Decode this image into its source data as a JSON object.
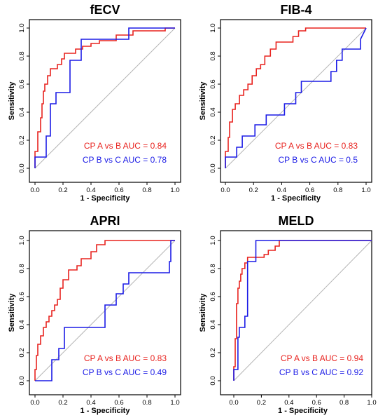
{
  "chart_data": [
    {
      "type": "line",
      "title": "fECV",
      "xlabel": "1 - Specificity",
      "ylabel": "Sensitivity",
      "xlim": [
        0,
        1
      ],
      "ylim": [
        0,
        1
      ],
      "ticks": [
        "0.0",
        "0.2",
        "0.4",
        "0.6",
        "0.8",
        "1.0"
      ],
      "reference_line": "diagonal",
      "legend_position": "bottom-right",
      "series": [
        {
          "name": "CP A vs B AUC = 0.84",
          "color": "#e8231f",
          "x": [
            0,
            0,
            0.02,
            0.02,
            0.04,
            0.04,
            0.05,
            0.05,
            0.06,
            0.06,
            0.07,
            0.07,
            0.09,
            0.09,
            0.11,
            0.11,
            0.16,
            0.16,
            0.19,
            0.19,
            0.21,
            0.21,
            0.29,
            0.29,
            0.34,
            0.34,
            0.4,
            0.4,
            0.46,
            0.46,
            0.58,
            0.58,
            0.7,
            0.7,
            0.93,
            0.93,
            1
          ],
          "y": [
            0,
            0.12,
            0.12,
            0.26,
            0.26,
            0.36,
            0.36,
            0.46,
            0.46,
            0.55,
            0.55,
            0.6,
            0.6,
            0.66,
            0.66,
            0.71,
            0.71,
            0.74,
            0.74,
            0.78,
            0.78,
            0.82,
            0.82,
            0.85,
            0.85,
            0.87,
            0.87,
            0.89,
            0.89,
            0.91,
            0.91,
            0.95,
            0.95,
            0.98,
            0.98,
            1,
            1
          ]
        },
        {
          "name": "CP B vs C AUC = 0.78",
          "color": "#1c1ce6",
          "x": [
            0,
            0,
            0.08,
            0.08,
            0.11,
            0.11,
            0.15,
            0.15,
            0.25,
            0.25,
            0.33,
            0.33,
            0.67,
            0.67,
            1
          ],
          "y": [
            0,
            0.08,
            0.08,
            0.23,
            0.23,
            0.46,
            0.46,
            0.54,
            0.54,
            0.77,
            0.77,
            0.92,
            0.92,
            1,
            1
          ]
        }
      ]
    },
    {
      "type": "line",
      "title": "FIB-4",
      "xlabel": "1 - Specificity",
      "ylabel": "Sensitivity",
      "xlim": [
        0,
        1
      ],
      "ylim": [
        0,
        1
      ],
      "ticks": [
        "0.0",
        "0.2",
        "0.4",
        "0.6",
        "0.8",
        "1.0"
      ],
      "reference_line": "diagonal",
      "legend_position": "bottom-right",
      "series": [
        {
          "name": "CP A vs B AUC = 0.83",
          "color": "#e8231f",
          "x": [
            0,
            0,
            0.02,
            0.02,
            0.03,
            0.03,
            0.05,
            0.05,
            0.07,
            0.07,
            0.1,
            0.1,
            0.13,
            0.13,
            0.16,
            0.16,
            0.19,
            0.19,
            0.22,
            0.22,
            0.25,
            0.25,
            0.28,
            0.28,
            0.32,
            0.32,
            0.36,
            0.36,
            0.48,
            0.48,
            0.52,
            0.52,
            0.57,
            0.57,
            1
          ],
          "y": [
            0,
            0.12,
            0.12,
            0.22,
            0.22,
            0.33,
            0.33,
            0.42,
            0.42,
            0.46,
            0.46,
            0.52,
            0.52,
            0.56,
            0.56,
            0.6,
            0.6,
            0.66,
            0.66,
            0.71,
            0.71,
            0.74,
            0.74,
            0.8,
            0.8,
            0.85,
            0.85,
            0.9,
            0.9,
            0.94,
            0.94,
            0.98,
            0.98,
            1,
            1
          ]
        },
        {
          "name": "CP B vs C AUC = 0.5",
          "color": "#1c1ce6",
          "x": [
            0,
            0,
            0.08,
            0.08,
            0.12,
            0.12,
            0.21,
            0.21,
            0.29,
            0.29,
            0.42,
            0.42,
            0.5,
            0.5,
            0.54,
            0.54,
            0.75,
            0.75,
            0.79,
            0.79,
            0.83,
            0.83,
            0.96,
            0.96,
            1
          ],
          "y": [
            0,
            0.08,
            0.08,
            0.15,
            0.15,
            0.23,
            0.23,
            0.31,
            0.31,
            0.38,
            0.38,
            0.46,
            0.46,
            0.54,
            0.54,
            0.62,
            0.62,
            0.69,
            0.69,
            0.77,
            0.77,
            0.85,
            0.85,
            0.92,
            1
          ]
        }
      ]
    },
    {
      "type": "line",
      "title": "APRI",
      "xlabel": "1 - Specificity",
      "ylabel": "Sensitivity",
      "xlim": [
        0,
        1
      ],
      "ylim": [
        0,
        1
      ],
      "ticks": [
        "0.0",
        "0.2",
        "0.4",
        "0.6",
        "0.8",
        "1.0"
      ],
      "reference_line": "diagonal",
      "legend_position": "bottom-right",
      "series": [
        {
          "name": "CP A vs B AUC = 0.83",
          "color": "#e8231f",
          "x": [
            0,
            0,
            0.01,
            0.01,
            0.02,
            0.02,
            0.04,
            0.04,
            0.06,
            0.06,
            0.08,
            0.08,
            0.1,
            0.1,
            0.12,
            0.12,
            0.14,
            0.14,
            0.16,
            0.16,
            0.18,
            0.18,
            0.2,
            0.2,
            0.24,
            0.24,
            0.3,
            0.3,
            0.33,
            0.33,
            0.4,
            0.4,
            0.44,
            0.44,
            0.5,
            0.5,
            1
          ],
          "y": [
            0,
            0.08,
            0.08,
            0.18,
            0.18,
            0.26,
            0.26,
            0.32,
            0.32,
            0.38,
            0.38,
            0.42,
            0.42,
            0.46,
            0.46,
            0.5,
            0.5,
            0.54,
            0.54,
            0.58,
            0.58,
            0.66,
            0.66,
            0.72,
            0.72,
            0.79,
            0.79,
            0.82,
            0.82,
            0.87,
            0.87,
            0.92,
            0.92,
            0.97,
            0.97,
            1,
            1
          ]
        },
        {
          "name": "CP B vs C AUC = 0.49",
          "color": "#1c1ce6",
          "x": [
            0,
            0,
            0.12,
            0.12,
            0.17,
            0.17,
            0.21,
            0.21,
            0.5,
            0.5,
            0.58,
            0.58,
            0.63,
            0.63,
            0.67,
            0.67,
            0.75,
            0.75,
            0.96,
            0.96,
            0.97,
            0.97,
            1
          ],
          "y": [
            0,
            0,
            0,
            0.15,
            0.15,
            0.23,
            0.23,
            0.38,
            0.38,
            0.54,
            0.54,
            0.62,
            0.62,
            0.69,
            0.69,
            0.77,
            0.77,
            0.77,
            0.77,
            0.85,
            0.85,
            1,
            1
          ]
        }
      ]
    },
    {
      "type": "line",
      "title": "MELD",
      "xlabel": "1 - Specificity",
      "ylabel": "Sensitivity",
      "xlim": [
        0,
        1
      ],
      "ylim": [
        0,
        1
      ],
      "ticks": [
        "0.0",
        "0.2",
        "0.4",
        "0.6",
        "0.8",
        "1.0"
      ],
      "reference_line": "diagonal",
      "legend_position": "bottom-right",
      "series": [
        {
          "name": "CP A vs B AUC = 0.94",
          "color": "#e8231f",
          "x": [
            0,
            0,
            0.01,
            0.01,
            0.02,
            0.02,
            0.03,
            0.03,
            0.04,
            0.04,
            0.05,
            0.05,
            0.06,
            0.06,
            0.08,
            0.08,
            0.1,
            0.1,
            0.22,
            0.22,
            0.25,
            0.25,
            0.3,
            0.3,
            0.33,
            0.33,
            1
          ],
          "y": [
            0,
            0.1,
            0.1,
            0.3,
            0.3,
            0.55,
            0.55,
            0.66,
            0.66,
            0.71,
            0.71,
            0.76,
            0.76,
            0.8,
            0.8,
            0.84,
            0.84,
            0.88,
            0.88,
            0.9,
            0.9,
            0.93,
            0.93,
            0.96,
            0.96,
            1,
            1
          ]
        },
        {
          "name": "CP B vs C AUC = 0.92",
          "color": "#1c1ce6",
          "x": [
            0,
            0,
            0.03,
            0.03,
            0.04,
            0.04,
            0.08,
            0.08,
            0.1,
            0.1,
            0.12,
            0.12,
            0.16,
            0.16,
            1
          ],
          "y": [
            0,
            0.08,
            0.08,
            0.31,
            0.31,
            0.38,
            0.38,
            0.46,
            0.46,
            0.85,
            0.85,
            0.85,
            0.85,
            1,
            1
          ]
        }
      ]
    }
  ]
}
